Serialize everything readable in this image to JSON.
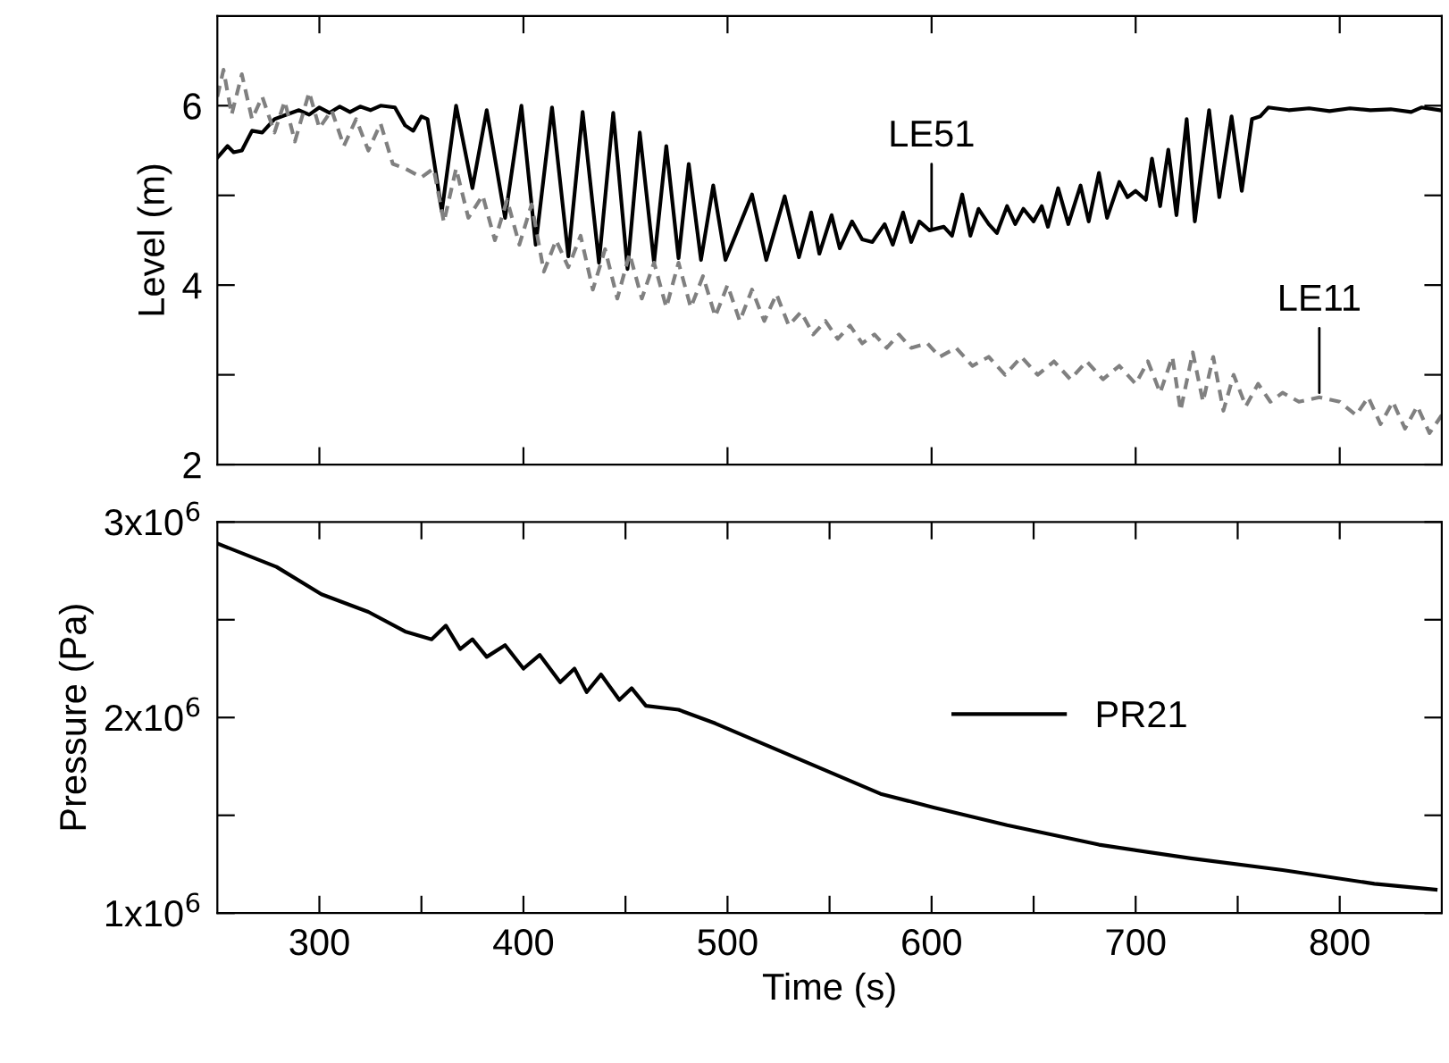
{
  "chart_data": [
    {
      "type": "line",
      "ylabel": "Level (m)",
      "xlim": [
        250,
        850
      ],
      "xticks": [
        {
          "value": 300,
          "label": null
        },
        {
          "value": 400,
          "label": null
        },
        {
          "value": 500,
          "label": null
        },
        {
          "value": 600,
          "label": null
        },
        {
          "value": 700,
          "label": null
        },
        {
          "value": 800,
          "label": null
        }
      ],
      "ylim": [
        2,
        7
      ],
      "yticks": [
        2,
        {
          "value": 3,
          "label": null
        },
        4,
        {
          "value": 5,
          "label": null
        },
        6
      ],
      "tick_labels": "y",
      "series": [
        {
          "color": "#000000",
          "line_style": "solid",
          "x": [
            250,
            255,
            258,
            262,
            267,
            272,
            278,
            284,
            290,
            295,
            300,
            305,
            310,
            315,
            320,
            325,
            330,
            337,
            342,
            346,
            350,
            353,
            360,
            367,
            375,
            382,
            391,
            399,
            406,
            414,
            422,
            429,
            437,
            444,
            451,
            457,
            464,
            470,
            476,
            481,
            487,
            493,
            499,
            512,
            519,
            528,
            535,
            541,
            545,
            551,
            555,
            561,
            566,
            571,
            577,
            581,
            586,
            590,
            594,
            599,
            606,
            610,
            615,
            619,
            623,
            628,
            632,
            637,
            641,
            645,
            650,
            654,
            657,
            662,
            667,
            673,
            677,
            682,
            686,
            692,
            696,
            700,
            705,
            708,
            712,
            716,
            720,
            725,
            729,
            736,
            741,
            747,
            752,
            757,
            761,
            765,
            775,
            785,
            795,
            805,
            815,
            825,
            835,
            840,
            849
          ],
          "values": [
            5.42,
            5.55,
            5.48,
            5.5,
            5.72,
            5.7,
            5.85,
            5.9,
            5.95,
            5.9,
            5.98,
            5.92,
            5.99,
            5.93,
            5.99,
            5.95,
            6.0,
            5.98,
            5.78,
            5.72,
            5.88,
            5.85,
            4.82,
            6.0,
            5.08,
            5.95,
            4.75,
            6.0,
            4.45,
            5.98,
            4.32,
            5.93,
            4.25,
            5.92,
            4.18,
            5.7,
            4.25,
            5.55,
            4.3,
            5.35,
            4.28,
            5.11,
            4.28,
            5.01,
            4.28,
            4.99,
            4.31,
            4.81,
            4.35,
            4.78,
            4.41,
            4.71,
            4.51,
            4.48,
            4.68,
            4.45,
            4.81,
            4.48,
            4.71,
            4.61,
            4.65,
            4.55,
            5.01,
            4.55,
            4.85,
            4.68,
            4.58,
            4.88,
            4.68,
            4.85,
            4.71,
            4.88,
            4.65,
            5.08,
            4.68,
            5.11,
            4.71,
            5.25,
            4.75,
            5.15,
            4.98,
            5.05,
            4.95,
            5.41,
            4.88,
            5.51,
            4.78,
            5.85,
            4.71,
            5.95,
            4.98,
            5.88,
            5.05,
            5.85,
            5.88,
            5.98,
            5.95,
            5.97,
            5.94,
            5.97,
            5.95,
            5.96,
            5.93,
            5.98,
            5.95
          ]
        },
        {
          "color": "#808080",
          "line_style": "dashed",
          "x": [
            250,
            253,
            257,
            262,
            267,
            272,
            278,
            283,
            288,
            295,
            300,
            306,
            312,
            318,
            324,
            330,
            336,
            342,
            350,
            356,
            361,
            367,
            373,
            380,
            386,
            392,
            398,
            404,
            410,
            416,
            422,
            428,
            434,
            440,
            446,
            452,
            458,
            464,
            470,
            476,
            482,
            488,
            494,
            500,
            506,
            512,
            518,
            524,
            530,
            536,
            542,
            548,
            554,
            560,
            566,
            572,
            578,
            584,
            590,
            598,
            604,
            612,
            620,
            628,
            636,
            644,
            652,
            660,
            668,
            676,
            684,
            692,
            700,
            706,
            712,
            718,
            722,
            728,
            733,
            738,
            743,
            748,
            754,
            760,
            766,
            772,
            780,
            790,
            800,
            808,
            814,
            820,
            826,
            832,
            838,
            844,
            850
          ],
          "values": [
            6.1,
            6.4,
            5.9,
            6.35,
            5.85,
            6.1,
            5.7,
            6.05,
            5.6,
            6.15,
            5.75,
            5.95,
            5.55,
            5.85,
            5.5,
            5.8,
            5.35,
            5.3,
            5.2,
            5.3,
            4.7,
            5.3,
            4.75,
            5.0,
            4.5,
            4.95,
            4.45,
            4.9,
            4.15,
            4.5,
            4.2,
            4.55,
            3.95,
            4.4,
            3.85,
            4.35,
            3.85,
            4.25,
            3.75,
            4.25,
            3.75,
            4.1,
            3.65,
            4.0,
            3.6,
            3.95,
            3.6,
            3.9,
            3.55,
            3.7,
            3.45,
            3.6,
            3.4,
            3.55,
            3.35,
            3.45,
            3.3,
            3.45,
            3.3,
            3.35,
            3.2,
            3.3,
            3.1,
            3.2,
            3.0,
            3.2,
            3.0,
            3.15,
            2.95,
            3.15,
            2.95,
            3.1,
            2.9,
            3.15,
            2.8,
            3.2,
            2.6,
            3.25,
            2.7,
            3.2,
            2.6,
            3.0,
            2.65,
            2.9,
            2.7,
            2.8,
            2.7,
            2.75,
            2.7,
            2.55,
            2.75,
            2.45,
            2.7,
            2.4,
            2.65,
            2.35,
            2.55
          ]
        }
      ],
      "annotations": [
        {
          "text": "LE51",
          "x": 600,
          "y": 4.63
        },
        {
          "text": "LE11",
          "x": 790,
          "y": 2.8
        }
      ]
    },
    {
      "type": "line",
      "xlabel": "Time (s)",
      "ylabel": "Pressure (Pa)",
      "xlim": [
        250,
        850
      ],
      "xticks": [
        300,
        {
          "value": 350,
          "label": null
        },
        400,
        {
          "value": 450,
          "label": null
        },
        500,
        {
          "value": 550,
          "label": null
        },
        600,
        {
          "value": 650,
          "label": null
        },
        700,
        {
          "value": 750,
          "label": null
        },
        800
      ],
      "ylim": [
        1000000,
        3000000
      ],
      "yticks": [
        {
          "value": 1000000,
          "label": "1x10$^{6}$"
        },
        {
          "value": 1500000,
          "label": null
        },
        {
          "value": 2000000,
          "label": "2x10$^{6}$"
        },
        {
          "value": 2500000,
          "label": null
        },
        {
          "value": 3000000,
          "label": "3x10$^{6}$"
        }
      ],
      "legend": "right",
      "series": [
        {
          "name": "PR21",
          "color": "#000000",
          "line_style": "solid",
          "x": [
            250,
            279,
            301,
            324,
            342,
            355,
            362,
            369,
            375,
            382,
            391,
            400,
            408,
            418,
            425,
            431,
            438,
            447,
            453,
            460,
            476,
            494,
            521,
            548,
            575,
            601,
            637,
            682,
            727,
            772,
            817,
            847
          ],
          "values": [
            2890000,
            2770000,
            2630000,
            2540000,
            2440000,
            2400000,
            2470000,
            2350000,
            2400000,
            2310000,
            2370000,
            2250000,
            2320000,
            2180000,
            2250000,
            2130000,
            2220000,
            2090000,
            2150000,
            2060000,
            2040000,
            1970000,
            1850000,
            1730000,
            1610000,
            1540000,
            1450000,
            1350000,
            1280000,
            1220000,
            1150000,
            1120000
          ]
        }
      ]
    }
  ]
}
